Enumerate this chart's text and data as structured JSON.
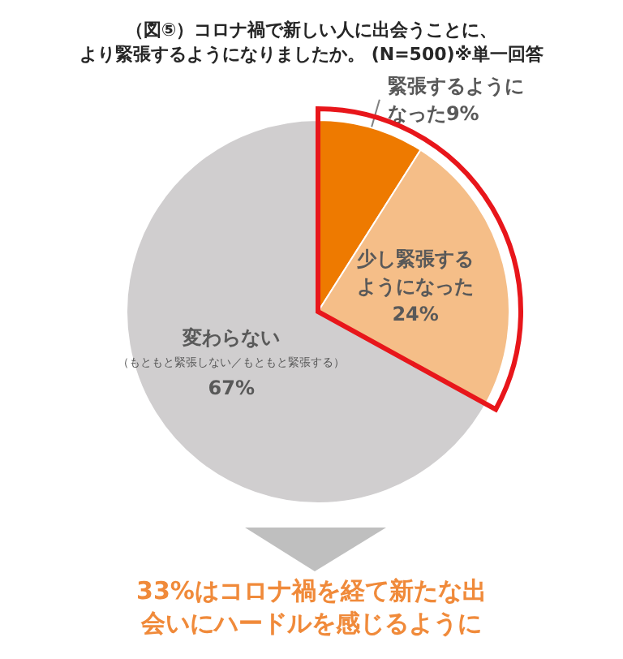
{
  "chart_data": {
    "type": "pie",
    "title": "（図⑤）コロナ禍で新しい人に出会うことに、より緊張するようになりましたか。 (N=500)※単一回答",
    "categories": [
      "緊張するようになった",
      "少し緊張するようになった",
      "変わらない（もともと緊張しない／もともと緊張する）"
    ],
    "values": [
      9,
      24,
      67
    ],
    "value_labels": [
      "9%",
      "24%",
      "67%"
    ],
    "colors": [
      "#ee7a00",
      "#f5be88",
      "#d0cecf"
    ],
    "annotations": [
      "33%はコロナ禍を経て新たな出会いにハードルを感じるように"
    ],
    "legend": false
  }
}
